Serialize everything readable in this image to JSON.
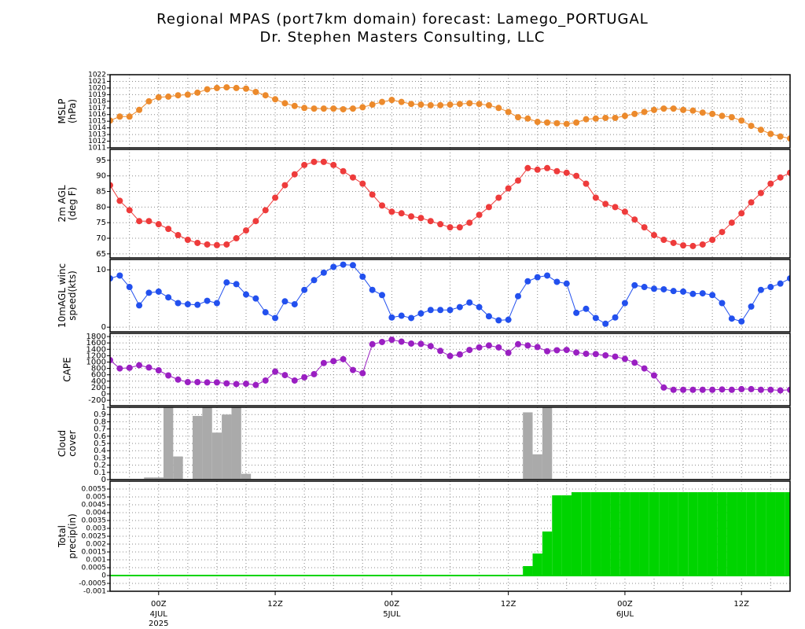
{
  "title": "Regional MPAS (port7km domain) forecast: Lamego_PORTUGAL",
  "subtitle": "Dr. Stephen Masters Consulting, LLC",
  "x_axis": {
    "xlim": [
      -5,
      65
    ],
    "x": [
      -5,
      -4,
      -3,
      -2,
      -1,
      0,
      1,
      2,
      3,
      4,
      5,
      6,
      7,
      8,
      9,
      10,
      11,
      12,
      13,
      14,
      15,
      16,
      17,
      18,
      19,
      20,
      21,
      22,
      23,
      24,
      25,
      26,
      27,
      28,
      29,
      30,
      31,
      32,
      33,
      34,
      35,
      36,
      37,
      38,
      39,
      40,
      41,
      42,
      43,
      44,
      45,
      46,
      47,
      48,
      49,
      50,
      51,
      52,
      53,
      54,
      55,
      56,
      57,
      58,
      59,
      60,
      61,
      62,
      63,
      64,
      65
    ],
    "xticks": [
      {
        "value": 0,
        "label": "00Z"
      },
      {
        "value": 12,
        "label": "12Z"
      },
      {
        "value": 24,
        "label": "00Z"
      },
      {
        "value": 36,
        "label": "12Z"
      },
      {
        "value": 48,
        "label": "00Z"
      },
      {
        "value": 60,
        "label": "12Z"
      }
    ],
    "date_labels": [
      {
        "value": 0,
        "label": "4JUL"
      },
      {
        "value": 24,
        "label": "5JUL"
      },
      {
        "value": 48,
        "label": "6JUL"
      }
    ],
    "year_label": {
      "value": 0,
      "label": "2025"
    },
    "grid_ticks": [
      -3,
      0,
      3,
      6,
      9,
      12,
      15,
      18,
      21,
      24,
      27,
      30,
      33,
      36,
      39,
      42,
      45,
      48,
      51,
      54,
      57,
      60,
      63
    ]
  },
  "chart_data": [
    {
      "type": "line",
      "ylabel": [
        "MSLP",
        "(hPa)"
      ],
      "color": "#ec8a2c",
      "ylim": [
        1011,
        1022
      ],
      "yticks": [
        1011,
        1012,
        1013,
        1014,
        1015,
        1016,
        1017,
        1018,
        1019,
        1020,
        1021,
        1022
      ],
      "values": [
        1015.1,
        1015.7,
        1015.7,
        1016.7,
        1018.0,
        1018.6,
        1018.7,
        1018.9,
        1019.0,
        1019.3,
        1019.8,
        1020.0,
        1020.1,
        1020.0,
        1019.9,
        1019.4,
        1018.9,
        1018.3,
        1017.7,
        1017.3,
        1017.0,
        1016.9,
        1016.9,
        1016.9,
        1016.8,
        1016.9,
        1017.1,
        1017.5,
        1017.9,
        1018.2,
        1017.9,
        1017.6,
        1017.5,
        1017.4,
        1017.4,
        1017.5,
        1017.6,
        1017.7,
        1017.6,
        1017.4,
        1017.0,
        1016.4,
        1015.6,
        1015.4,
        1014.9,
        1014.8,
        1014.7,
        1014.6,
        1014.8,
        1015.3,
        1015.4,
        1015.5,
        1015.5,
        1015.8,
        1016.1,
        1016.4,
        1016.7,
        1016.9,
        1016.9,
        1016.7,
        1016.6,
        1016.3,
        1016.1,
        1015.8,
        1015.6,
        1015.1,
        1014.3,
        1013.7,
        1013.1,
        1012.7,
        1012.4
      ]
    },
    {
      "type": "line",
      "ylabel": [
        "2m AGL",
        "(deg F)"
      ],
      "color": "#ee3b3b",
      "ylim": [
        63.7,
        98.5
      ],
      "yticks": [
        65,
        70,
        75,
        80,
        85,
        90,
        95
      ],
      "values": [
        87,
        82,
        79,
        75.5,
        75.5,
        74.5,
        73,
        71,
        69.5,
        68.5,
        68,
        67.8,
        68,
        70,
        72.5,
        75.5,
        79,
        83,
        87,
        90.5,
        93.5,
        94.5,
        94.5,
        93.5,
        91.5,
        89.5,
        87.5,
        84,
        80.5,
        78.5,
        78,
        77,
        76.5,
        75.5,
        74.5,
        73.5,
        73.5,
        75,
        77.5,
        80,
        83,
        86,
        88.5,
        92.5,
        92,
        92.5,
        91.5,
        91,
        90,
        87.5,
        83,
        81,
        80,
        78.5,
        76,
        73.5,
        71,
        69.5,
        68.5,
        67.7,
        67.5,
        68,
        69.5,
        72,
        75,
        78,
        81.5,
        84.5,
        87.5,
        89.5,
        91
      ]
    },
    {
      "type": "line",
      "ylabel": [
        "10mAGL winc",
        "speed(kts)"
      ],
      "color": "#2250ee",
      "ylim": [
        -0.8,
        11.8
      ],
      "yticks": [
        0,
        10
      ],
      "values": [
        8.5,
        9,
        7,
        3.8,
        6,
        6.2,
        5.2,
        4.2,
        4,
        3.9,
        4.6,
        4.2,
        7.8,
        7.5,
        5.7,
        5,
        2.6,
        1.6,
        4.5,
        4,
        6.5,
        8.2,
        9.5,
        10.5,
        10.9,
        10.8,
        8.8,
        6.5,
        5.6,
        1.7,
        2,
        1.6,
        2.4,
        3,
        3,
        3,
        3.5,
        4.3,
        3.5,
        1.9,
        1.2,
        1.3,
        5.4,
        8,
        8.7,
        9,
        7.9,
        7.6,
        2.5,
        3.2,
        1.6,
        0.6,
        1.7,
        4.2,
        7.3,
        7,
        6.7,
        6.6,
        6.3,
        6.2,
        5.8,
        5.9,
        5.6,
        4.2,
        1.5,
        1,
        3.6,
        6.5,
        7,
        7.6,
        8.5
      ]
    },
    {
      "type": "line",
      "ylabel": [
        "CAPE"
      ],
      "color": "#9a1fc2",
      "ylim": [
        -370,
        1900
      ],
      "yticks": [
        -200,
        0,
        200,
        400,
        600,
        800,
        1000,
        1200,
        1400,
        1600,
        1800
      ],
      "values": [
        1060,
        800,
        820,
        900,
        830,
        740,
        580,
        450,
        370,
        370,
        360,
        360,
        330,
        310,
        320,
        280,
        420,
        700,
        590,
        420,
        520,
        620,
        970,
        1030,
        1090,
        750,
        650,
        1560,
        1630,
        1700,
        1640,
        1580,
        1570,
        1500,
        1350,
        1190,
        1240,
        1380,
        1460,
        1520,
        1460,
        1290,
        1560,
        1520,
        1470,
        1340,
        1370,
        1380,
        1300,
        1260,
        1250,
        1210,
        1170,
        1100,
        980,
        800,
        580,
        200,
        130,
        130,
        130,
        130,
        130,
        140,
        130,
        150,
        150,
        130,
        130,
        110,
        130
      ]
    },
    {
      "type": "bar",
      "ylabel": [
        "Cloud",
        "cover"
      ],
      "color": "#aaaaaa",
      "ylim": [
        0,
        1
      ],
      "yticks": [
        0,
        0.1,
        0.2,
        0.3,
        0.4,
        0.5,
        0.6,
        0.7,
        0.8,
        0.9,
        1
      ],
      "values": [
        0,
        0,
        0,
        0,
        0.03,
        0.03,
        1,
        0.32,
        0,
        0.88,
        1,
        0.65,
        0.9,
        1,
        0.08,
        0,
        0,
        0,
        0,
        0,
        0,
        0,
        0,
        0,
        0,
        0,
        0,
        0,
        0,
        0,
        0,
        0,
        0,
        0,
        0,
        0,
        0,
        0,
        0,
        0,
        0,
        0,
        0,
        0.93,
        0.35,
        1,
        0,
        0,
        0,
        0,
        0,
        0,
        0,
        0,
        0,
        0,
        0,
        0,
        0,
        0,
        0,
        0,
        0,
        0,
        0,
        0,
        0,
        0,
        0,
        0,
        0
      ]
    },
    {
      "type": "bar",
      "ylabel": [
        "Total",
        "precip(in)"
      ],
      "color": "#00d400",
      "ylim": [
        -0.001,
        0.006
      ],
      "yticks": [
        -0.001,
        -0.0005,
        0,
        0.0005,
        0.001,
        0.0015,
        0.002,
        0.0025,
        0.003,
        0.0035,
        0.004,
        0.0045,
        0.005,
        0.0055
      ],
      "values": [
        0,
        0,
        0,
        0,
        0,
        0,
        0,
        0,
        0,
        0,
        0,
        0,
        0,
        0,
        0,
        0,
        0,
        0,
        0,
        0,
        0,
        0,
        0,
        0,
        0,
        0,
        0,
        0,
        0,
        0,
        0,
        0,
        0,
        0,
        0,
        0,
        0,
        0,
        0,
        0,
        0,
        0,
        0,
        0.0006,
        0.0014,
        0.0028,
        0.0051,
        0.0051,
        0.0053,
        0.0053,
        0.0053,
        0.0053,
        0.0053,
        0.0053,
        0.0053,
        0.0053,
        0.0053,
        0.0053,
        0.0053,
        0.0053,
        0.0053,
        0.0053,
        0.0053,
        0.0053,
        0.0053,
        0.0053,
        0.0053,
        0.0053,
        0.0053,
        0.0053,
        0.0053
      ]
    }
  ]
}
